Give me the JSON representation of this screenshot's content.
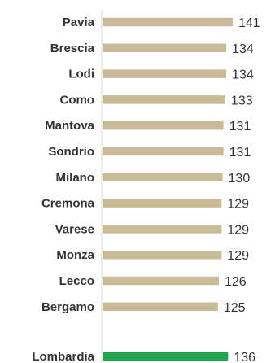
{
  "chart_data": {
    "type": "bar",
    "orientation": "horizontal",
    "categories": [
      "Pavia",
      "Brescia",
      "Lodi",
      "Como",
      "Mantova",
      "Sondrio",
      "Milano",
      "Cremona",
      "Varese",
      "Monza",
      "Lecco",
      "Bergamo",
      "Lombardia"
    ],
    "values": [
      141,
      134,
      134,
      133,
      131,
      131,
      130,
      129,
      129,
      129,
      126,
      125,
      136
    ],
    "value_labels": [
      "141",
      "134",
      "134",
      "133",
      "131",
      "131",
      "130",
      "129",
      "129",
      "129",
      "126",
      "125",
      "136"
    ],
    "highlight_category": "Lombardia",
    "bar_color": "#c9bb98",
    "highlight_color": "#1fa84f",
    "axis_color": "#d9d9d9",
    "title": "",
    "xlabel": "",
    "ylabel": "",
    "grid": false,
    "legend": false
  }
}
